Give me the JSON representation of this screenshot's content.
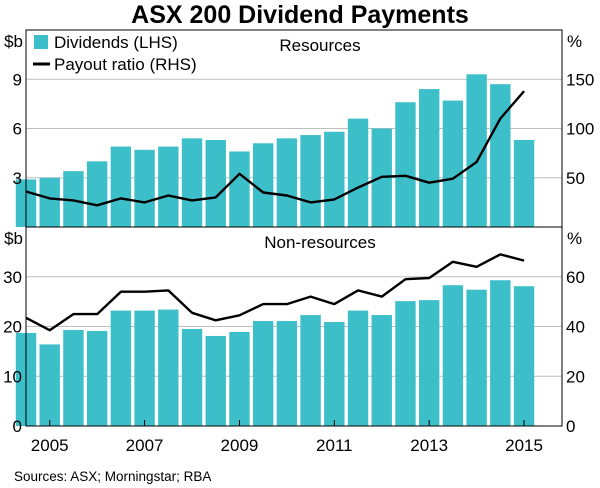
{
  "figure": {
    "title": "ASX 200 Dividend Payments",
    "source": "Sources:   ASX; Morningstar; RBA"
  },
  "colors": {
    "bar": "#3dbfc9",
    "line": "#000000",
    "grid": "#bfbfbf",
    "frame": "#000000"
  },
  "chart_data": [
    {
      "type": "bar",
      "title": "Resources",
      "x_start": 2004.5,
      "x_step": 0.5,
      "x_range": [
        2004.5,
        2015.8
      ],
      "xtick_labels": [
        "2005",
        "2007",
        "2009",
        "2011",
        "2013",
        "2015"
      ],
      "xtick_values": [
        2005.0,
        2007.0,
        2009.0,
        2011.0,
        2013.0,
        2015.0
      ],
      "y_left": {
        "unit": "$b",
        "ylim": [
          0,
          12
        ],
        "ticks": [
          3,
          6,
          9
        ]
      },
      "y_right": {
        "unit": "%",
        "ylim": [
          0,
          200
        ],
        "ticks": [
          50,
          100,
          150
        ]
      },
      "legend": {
        "placement": "top-left",
        "entries": [
          "Dividends (LHS)",
          "Payout ratio (RHS)"
        ]
      },
      "series": [
        {
          "name": "Dividends (LHS)",
          "kind": "bar",
          "axis": "left",
          "values": [
            2.9,
            3.0,
            3.4,
            4.0,
            4.9,
            4.7,
            4.9,
            5.4,
            5.3,
            4.6,
            5.1,
            5.4,
            5.6,
            5.8,
            6.6,
            6.0,
            7.6,
            8.4,
            7.7,
            9.3,
            8.7,
            5.3
          ]
        },
        {
          "name": "Payout ratio (RHS)",
          "kind": "line",
          "axis": "right",
          "values": [
            36,
            29,
            27,
            22,
            29,
            25,
            32,
            27,
            30,
            54,
            35,
            32,
            25,
            28,
            40,
            51,
            52,
            45,
            49,
            66,
            110,
            138
          ]
        }
      ]
    },
    {
      "type": "bar",
      "title": "Non-resources",
      "x_start": 2004.5,
      "x_step": 0.5,
      "x_range": [
        2004.5,
        2015.8
      ],
      "y_left": {
        "unit": "$b",
        "ylim": [
          0,
          40
        ],
        "ticks": [
          0,
          10,
          20,
          30
        ]
      },
      "y_right": {
        "unit": "%",
        "ylim": [
          0,
          80
        ],
        "ticks": [
          0,
          20,
          40,
          60
        ]
      },
      "series": [
        {
          "name": "Dividends (LHS)",
          "kind": "bar",
          "axis": "left",
          "values": [
            18.7,
            16.4,
            19.3,
            19.1,
            23.2,
            23.2,
            23.4,
            19.5,
            18.1,
            18.9,
            21.1,
            21.1,
            22.3,
            20.9,
            23.2,
            22.3,
            25.1,
            25.3,
            28.3,
            27.4,
            29.3,
            28.1
          ]
        },
        {
          "name": "Payout ratio (RHS)",
          "kind": "line",
          "axis": "right",
          "values": [
            43.5,
            38.5,
            45,
            45,
            54,
            54,
            54.5,
            45.5,
            42.5,
            44.5,
            49,
            49,
            52,
            49,
            54.5,
            52,
            59,
            59.5,
            66,
            64,
            69,
            66.5
          ]
        }
      ]
    }
  ]
}
